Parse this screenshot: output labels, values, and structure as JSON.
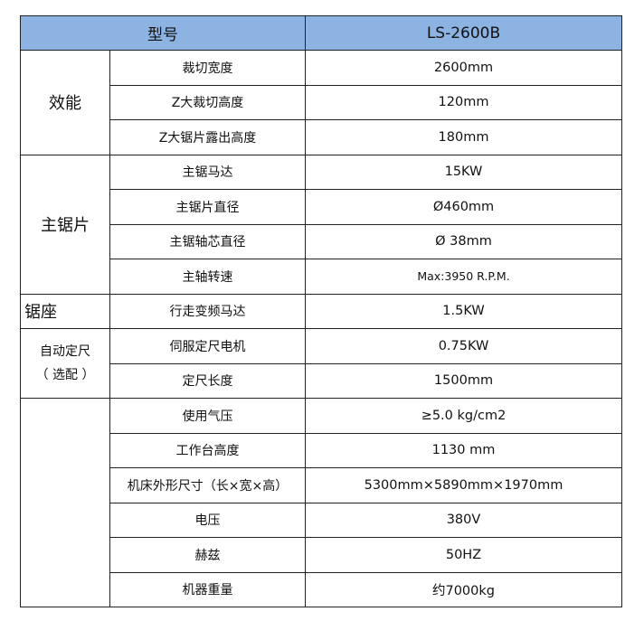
{
  "header": {
    "model_label": "型号",
    "model_value": "LS-2600B"
  },
  "groups": {
    "performance": "效能",
    "main_saw": "主锯片",
    "saw_base": "锯座",
    "auto_sizing_line1": "自动定尺",
    "auto_sizing_line2": "（ 选配 ）"
  },
  "rows": [
    {
      "param": "裁切宽度",
      "value": "2600mm"
    },
    {
      "param": "Z大裁切高度",
      "value": "120mm"
    },
    {
      "param": "Z大锯片露出高度",
      "value": "180mm"
    },
    {
      "param": "主锯马达",
      "value": "15KW"
    },
    {
      "param": "主锯片直径",
      "value": "Ø460mm"
    },
    {
      "param": "主锯轴芯直径",
      "value": "Ø 38mm"
    },
    {
      "param": "主轴转速",
      "value": "Max:3950 R.P.M."
    },
    {
      "param": "行走变频马达",
      "value": "1.5KW"
    },
    {
      "param": "伺服定尺电机",
      "value": "0.75KW"
    },
    {
      "param": "定尺长度",
      "value": "1500mm"
    },
    {
      "param": "使用气压",
      "value": "≥5.0 kg/cm2"
    },
    {
      "param": "工作台高度",
      "value": "1130 mm"
    },
    {
      "param": "机床外形尺寸（长×宽×高）",
      "value": "5300mm×5890mm×1970mm"
    },
    {
      "param": "电压",
      "value": "380V"
    },
    {
      "param": "赫兹",
      "value": "50HZ"
    },
    {
      "param": "机器重量",
      "value": "约7000kg"
    }
  ],
  "colors": {
    "header_bg": "#8DB3E2",
    "border": "#222222"
  }
}
